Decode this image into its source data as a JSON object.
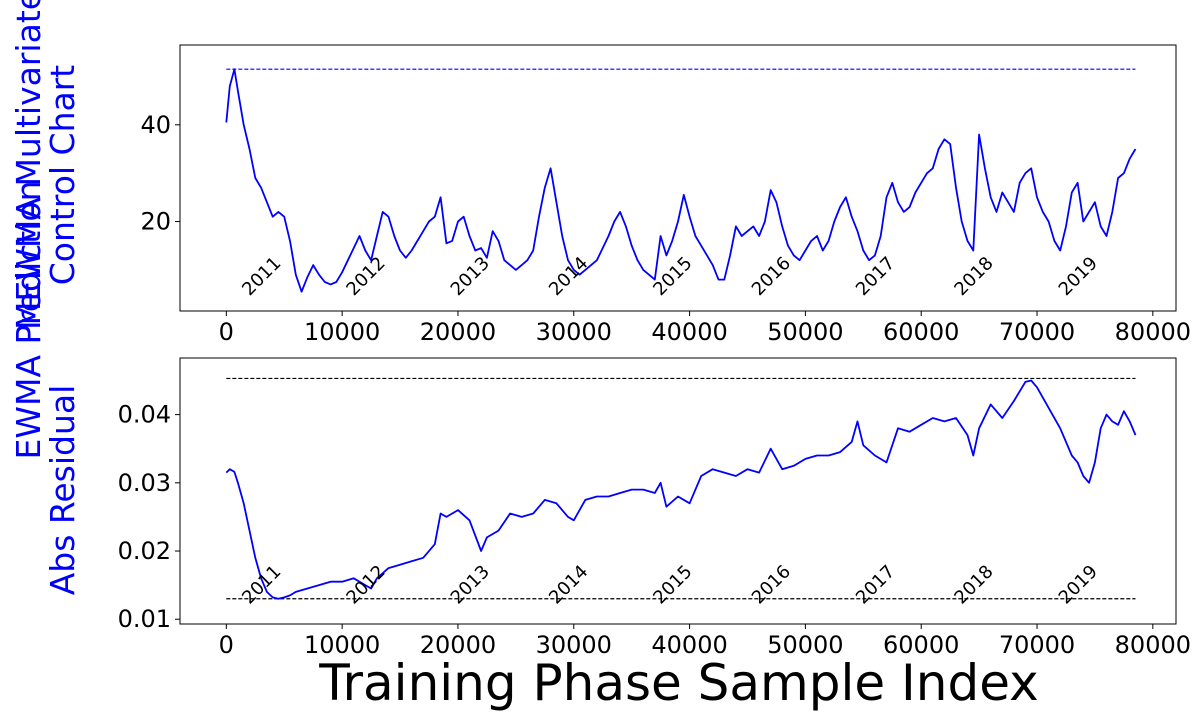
{
  "figure": {
    "xlabel": "Training Phase Sample Index"
  },
  "chart_data": [
    {
      "type": "line",
      "ylabel_lines": [
        "MEWMA Multivariate",
        "Control Chart"
      ],
      "xlim": [
        -4000,
        82000
      ],
      "ylim": [
        1.5,
        56.5
      ],
      "xticks": [
        0,
        10000,
        20000,
        30000,
        40000,
        50000,
        60000,
        70000,
        80000
      ],
      "xtick_labels": [
        "0",
        "10000",
        "20000",
        "30000",
        "40000",
        "50000",
        "60000",
        "70000",
        "80000"
      ],
      "yticks": [
        20,
        40
      ],
      "ytick_labels": [
        "20",
        "40"
      ],
      "series_color": "#0000ff",
      "limit_lines": [
        {
          "y": 51.5,
          "x": [
            0,
            78500
          ],
          "color": "#0000ff",
          "dashed": true
        }
      ],
      "year_labels": [
        {
          "text": "2011",
          "x": 2000,
          "y": 4.5
        },
        {
          "text": "2012",
          "x": 11000,
          "y": 4.5
        },
        {
          "text": "2013",
          "x": 20000,
          "y": 4.5
        },
        {
          "text": "2014",
          "x": 28500,
          "y": 4.5
        },
        {
          "text": "2015",
          "x": 37500,
          "y": 4.5
        },
        {
          "text": "2016",
          "x": 46000,
          "y": 4.5
        },
        {
          "text": "2017",
          "x": 55000,
          "y": 4.5
        },
        {
          "text": "2018",
          "x": 63500,
          "y": 4.5
        },
        {
          "text": "2019",
          "x": 72500,
          "y": 4.5
        }
      ],
      "points": [
        [
          0,
          40.5
        ],
        [
          300,
          48
        ],
        [
          700,
          51.5
        ],
        [
          1000,
          47
        ],
        [
          1500,
          40
        ],
        [
          2000,
          35
        ],
        [
          2500,
          29
        ],
        [
          3000,
          27
        ],
        [
          3500,
          24
        ],
        [
          4000,
          21
        ],
        [
          4500,
          22
        ],
        [
          5000,
          21
        ],
        [
          5500,
          16
        ],
        [
          6000,
          9
        ],
        [
          6500,
          5.5
        ],
        [
          7000,
          8.5
        ],
        [
          7500,
          11
        ],
        [
          8000,
          9
        ],
        [
          8500,
          7.5
        ],
        [
          9000,
          7
        ],
        [
          9500,
          7.5
        ],
        [
          10000,
          9.5
        ],
        [
          10500,
          12
        ],
        [
          11000,
          14.5
        ],
        [
          11500,
          17
        ],
        [
          12000,
          14
        ],
        [
          12500,
          12
        ],
        [
          13000,
          17
        ],
        [
          13500,
          22
        ],
        [
          14000,
          21
        ],
        [
          14500,
          17
        ],
        [
          15000,
          14
        ],
        [
          15500,
          12.5
        ],
        [
          16000,
          14
        ],
        [
          16500,
          16
        ],
        [
          17000,
          18
        ],
        [
          17500,
          20
        ],
        [
          18000,
          21
        ],
        [
          18500,
          25
        ],
        [
          19000,
          15.5
        ],
        [
          19500,
          16
        ],
        [
          20000,
          20
        ],
        [
          20500,
          21
        ],
        [
          21000,
          17
        ],
        [
          21500,
          14
        ],
        [
          22000,
          14.5
        ],
        [
          22500,
          12.5
        ],
        [
          23000,
          18
        ],
        [
          23500,
          16
        ],
        [
          24000,
          12
        ],
        [
          24500,
          11
        ],
        [
          25000,
          10
        ],
        [
          25500,
          11
        ],
        [
          26000,
          12
        ],
        [
          26500,
          14
        ],
        [
          27000,
          21
        ],
        [
          27500,
          27
        ],
        [
          28000,
          31
        ],
        [
          28500,
          24
        ],
        [
          29000,
          17
        ],
        [
          29500,
          12
        ],
        [
          30000,
          10
        ],
        [
          30500,
          9
        ],
        [
          31000,
          10
        ],
        [
          31500,
          11
        ],
        [
          32000,
          12
        ],
        [
          32500,
          14.5
        ],
        [
          33000,
          17
        ],
        [
          33500,
          20
        ],
        [
          34000,
          22
        ],
        [
          34500,
          19
        ],
        [
          35000,
          15
        ],
        [
          35500,
          12
        ],
        [
          36000,
          10
        ],
        [
          36500,
          9
        ],
        [
          37000,
          8
        ],
        [
          37500,
          17
        ],
        [
          38000,
          13
        ],
        [
          38500,
          16
        ],
        [
          39000,
          20
        ],
        [
          39500,
          25.5
        ],
        [
          40000,
          21
        ],
        [
          40500,
          17
        ],
        [
          41000,
          15
        ],
        [
          41500,
          13
        ],
        [
          42000,
          11
        ],
        [
          42500,
          8
        ],
        [
          43000,
          8
        ],
        [
          43500,
          13
        ],
        [
          44000,
          19
        ],
        [
          44500,
          17
        ],
        [
          45000,
          18
        ],
        [
          45500,
          19
        ],
        [
          46000,
          17
        ],
        [
          46500,
          20
        ],
        [
          47000,
          26.5
        ],
        [
          47500,
          24
        ],
        [
          48000,
          19
        ],
        [
          48500,
          15
        ],
        [
          49000,
          13
        ],
        [
          49500,
          12
        ],
        [
          50000,
          14
        ],
        [
          50500,
          16
        ],
        [
          51000,
          17
        ],
        [
          51500,
          14
        ],
        [
          52000,
          16
        ],
        [
          52500,
          20
        ],
        [
          53000,
          23
        ],
        [
          53500,
          25
        ],
        [
          54000,
          21
        ],
        [
          54500,
          18
        ],
        [
          55000,
          14
        ],
        [
          55500,
          12
        ],
        [
          56000,
          13
        ],
        [
          56500,
          17
        ],
        [
          57000,
          25
        ],
        [
          57500,
          28
        ],
        [
          58000,
          24
        ],
        [
          58500,
          22
        ],
        [
          59000,
          23
        ],
        [
          59500,
          26
        ],
        [
          60000,
          28
        ],
        [
          60500,
          30
        ],
        [
          61000,
          31
        ],
        [
          61500,
          35
        ],
        [
          62000,
          37
        ],
        [
          62500,
          36
        ],
        [
          63000,
          27
        ],
        [
          63500,
          20
        ],
        [
          64000,
          16
        ],
        [
          64500,
          14
        ],
        [
          65000,
          38
        ],
        [
          65500,
          31
        ],
        [
          66000,
          25
        ],
        [
          66500,
          22
        ],
        [
          67000,
          26
        ],
        [
          67500,
          24
        ],
        [
          68000,
          22
        ],
        [
          68500,
          28
        ],
        [
          69000,
          30
        ],
        [
          69500,
          31
        ],
        [
          70000,
          25
        ],
        [
          70500,
          22
        ],
        [
          71000,
          20
        ],
        [
          71500,
          16
        ],
        [
          72000,
          14
        ],
        [
          72500,
          19
        ],
        [
          73000,
          26
        ],
        [
          73500,
          28
        ],
        [
          74000,
          20
        ],
        [
          74500,
          22
        ],
        [
          75000,
          24
        ],
        [
          75500,
          19
        ],
        [
          76000,
          17
        ],
        [
          76500,
          22
        ],
        [
          77000,
          29
        ],
        [
          77500,
          30
        ],
        [
          78000,
          33
        ],
        [
          78500,
          35
        ]
      ]
    },
    {
      "type": "line",
      "ylabel_lines": [
        "EWMA Prediction",
        "Abs Residual"
      ],
      "xlim": [
        -4000,
        82000
      ],
      "ylim": [
        0.0093,
        0.0483
      ],
      "xticks": [
        0,
        10000,
        20000,
        30000,
        40000,
        50000,
        60000,
        70000,
        80000
      ],
      "xtick_labels": [
        "0",
        "10000",
        "20000",
        "30000",
        "40000",
        "50000",
        "60000",
        "70000",
        "80000"
      ],
      "yticks": [
        0.01,
        0.02,
        0.03,
        0.04
      ],
      "ytick_labels": [
        "0.01",
        "0.02",
        "0.03",
        "0.04"
      ],
      "series_color": "#0000ff",
      "limit_lines": [
        {
          "y": 0.0453,
          "x": [
            0,
            78500
          ],
          "color": "#000000",
          "dashed": true
        },
        {
          "y": 0.013,
          "x": [
            0,
            78500
          ],
          "color": "#000000",
          "dashed": true
        }
      ],
      "year_labels": [
        {
          "text": "2011",
          "x": 2000,
          "y": 0.0121
        },
        {
          "text": "2012",
          "x": 11000,
          "y": 0.0121
        },
        {
          "text": "2013",
          "x": 20000,
          "y": 0.0121
        },
        {
          "text": "2014",
          "x": 28500,
          "y": 0.0121
        },
        {
          "text": "2015",
          "x": 37500,
          "y": 0.0121
        },
        {
          "text": "2016",
          "x": 46000,
          "y": 0.0121
        },
        {
          "text": "2017",
          "x": 55000,
          "y": 0.0121
        },
        {
          "text": "2018",
          "x": 63500,
          "y": 0.0121
        },
        {
          "text": "2019",
          "x": 72500,
          "y": 0.0121
        }
      ],
      "points": [
        [
          0,
          0.0315
        ],
        [
          300,
          0.032
        ],
        [
          700,
          0.0316
        ],
        [
          1000,
          0.03
        ],
        [
          1500,
          0.027
        ],
        [
          2000,
          0.023
        ],
        [
          2500,
          0.019
        ],
        [
          3000,
          0.016
        ],
        [
          3500,
          0.014
        ],
        [
          4000,
          0.0132
        ],
        [
          4500,
          0.013
        ],
        [
          5000,
          0.0132
        ],
        [
          5500,
          0.0135
        ],
        [
          6000,
          0.014
        ],
        [
          7000,
          0.0145
        ],
        [
          8000,
          0.015
        ],
        [
          9000,
          0.0155
        ],
        [
          10000,
          0.0155
        ],
        [
          11000,
          0.016
        ],
        [
          12000,
          0.015
        ],
        [
          12500,
          0.0145
        ],
        [
          13000,
          0.016
        ],
        [
          14000,
          0.0175
        ],
        [
          15000,
          0.018
        ],
        [
          16000,
          0.0185
        ],
        [
          17000,
          0.019
        ],
        [
          18000,
          0.021
        ],
        [
          18500,
          0.0255
        ],
        [
          19000,
          0.025
        ],
        [
          20000,
          0.026
        ],
        [
          21000,
          0.0245
        ],
        [
          22000,
          0.02
        ],
        [
          22500,
          0.022
        ],
        [
          23500,
          0.023
        ],
        [
          24500,
          0.0255
        ],
        [
          25500,
          0.025
        ],
        [
          26500,
          0.0255
        ],
        [
          27500,
          0.0275
        ],
        [
          28500,
          0.027
        ],
        [
          29500,
          0.025
        ],
        [
          30000,
          0.0245
        ],
        [
          31000,
          0.0275
        ],
        [
          32000,
          0.028
        ],
        [
          33000,
          0.028
        ],
        [
          34000,
          0.0285
        ],
        [
          35000,
          0.029
        ],
        [
          36000,
          0.029
        ],
        [
          37000,
          0.0285
        ],
        [
          37500,
          0.03
        ],
        [
          38000,
          0.0265
        ],
        [
          39000,
          0.028
        ],
        [
          40000,
          0.027
        ],
        [
          41000,
          0.031
        ],
        [
          42000,
          0.032
        ],
        [
          43000,
          0.0315
        ],
        [
          44000,
          0.031
        ],
        [
          45000,
          0.032
        ],
        [
          46000,
          0.0315
        ],
        [
          47000,
          0.035
        ],
        [
          48000,
          0.032
        ],
        [
          49000,
          0.0325
        ],
        [
          50000,
          0.0335
        ],
        [
          51000,
          0.034
        ],
        [
          52000,
          0.034
        ],
        [
          53000,
          0.0345
        ],
        [
          54000,
          0.036
        ],
        [
          54500,
          0.039
        ],
        [
          55000,
          0.0355
        ],
        [
          56000,
          0.034
        ],
        [
          57000,
          0.033
        ],
        [
          58000,
          0.038
        ],
        [
          59000,
          0.0375
        ],
        [
          60000,
          0.0385
        ],
        [
          61000,
          0.0395
        ],
        [
          62000,
          0.039
        ],
        [
          63000,
          0.0395
        ],
        [
          64000,
          0.037
        ],
        [
          64500,
          0.034
        ],
        [
          65000,
          0.038
        ],
        [
          66000,
          0.0415
        ],
        [
          67000,
          0.0395
        ],
        [
          68000,
          0.042
        ],
        [
          69000,
          0.0448
        ],
        [
          69500,
          0.045
        ],
        [
          70000,
          0.044
        ],
        [
          71000,
          0.041
        ],
        [
          72000,
          0.038
        ],
        [
          73000,
          0.034
        ],
        [
          73500,
          0.033
        ],
        [
          74000,
          0.031
        ],
        [
          74500,
          0.03
        ],
        [
          75000,
          0.033
        ],
        [
          75500,
          0.038
        ],
        [
          76000,
          0.04
        ],
        [
          76500,
          0.039
        ],
        [
          77000,
          0.0385
        ],
        [
          77500,
          0.0405
        ],
        [
          78000,
          0.039
        ],
        [
          78500,
          0.037
        ]
      ]
    }
  ]
}
